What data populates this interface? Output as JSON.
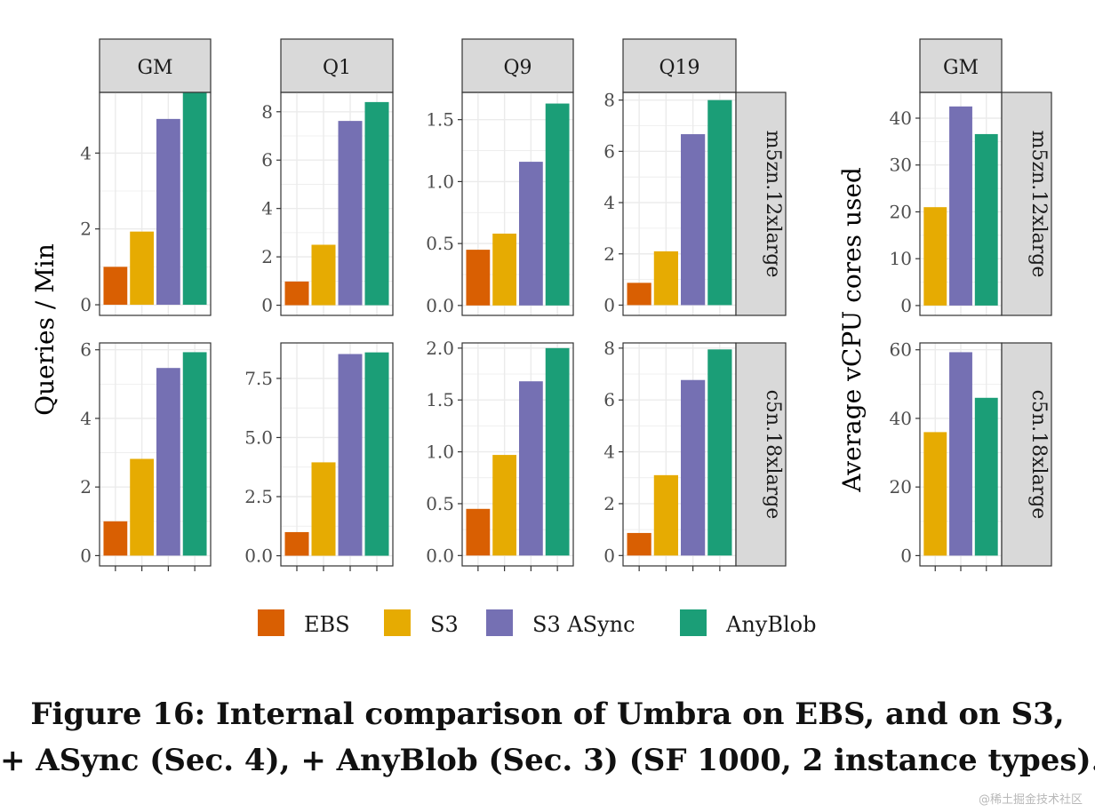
{
  "colors": {
    "EBS": "#d95f02",
    "S3": "#e6ab02",
    "S3 ASync": "#7570b3",
    "AnyBlob": "#1b9e77",
    "strip_fill": "#d9d9d9",
    "grid": "#ebebeb",
    "panel_border": "#333333"
  },
  "legend": {
    "items": [
      {
        "label": "EBS",
        "key": "EBS"
      },
      {
        "label": "S3",
        "key": "S3"
      },
      {
        "label": "S3 ASync",
        "key": "S3 ASync"
      },
      {
        "label": "AnyBlob",
        "key": "AnyBlob"
      }
    ]
  },
  "chart_data": [
    {
      "type": "bar",
      "ylabel": "Queries / Min",
      "categories": [
        "EBS",
        "S3",
        "S3 ASync",
        "AnyBlob"
      ],
      "columns": [
        "GM",
        "Q1",
        "Q9",
        "Q19"
      ],
      "rows": [
        "m5zn.12xlarge",
        "c5n.18xlarge"
      ],
      "panels": [
        {
          "column": "GM",
          "row": "m5zn.12xlarge",
          "values": [
            1.0,
            1.93,
            4.9,
            5.6
          ],
          "ylim": [
            -0.28,
            5.6
          ],
          "ticks": [
            0,
            2,
            4
          ],
          "tick_labels": [
            "0",
            "2",
            "4"
          ]
        },
        {
          "column": "Q1",
          "row": "m5zn.12xlarge",
          "values": [
            0.98,
            2.5,
            7.62,
            8.4
          ],
          "ylim": [
            -0.42,
            8.8
          ],
          "ticks": [
            0,
            2,
            4,
            6,
            8
          ],
          "tick_labels": [
            "0",
            "2",
            "4",
            "6",
            "8"
          ]
        },
        {
          "column": "Q9",
          "row": "m5zn.12xlarge",
          "values": [
            0.45,
            0.58,
            1.16,
            1.63
          ],
          "ylim": [
            -0.08,
            1.72
          ],
          "ticks": [
            0,
            0.5,
            1.0,
            1.5
          ],
          "tick_labels": [
            "0.0",
            "0.5",
            "1.0",
            "1.5"
          ]
        },
        {
          "column": "Q19",
          "row": "m5zn.12xlarge",
          "values": [
            0.87,
            2.1,
            6.67,
            8.0
          ],
          "ylim": [
            -0.4,
            8.3
          ],
          "ticks": [
            0,
            2,
            4,
            6,
            8
          ],
          "tick_labels": [
            "0",
            "2",
            "4",
            "6",
            "8"
          ]
        },
        {
          "column": "GM",
          "row": "c5n.18xlarge",
          "values": [
            1.0,
            2.82,
            5.47,
            5.93
          ],
          "ylim": [
            -0.3,
            6.2
          ],
          "ticks": [
            0,
            2,
            4,
            6
          ],
          "tick_labels": [
            "0",
            "2",
            "4",
            "6"
          ]
        },
        {
          "column": "Q1",
          "row": "c5n.18xlarge",
          "values": [
            1.0,
            3.95,
            8.53,
            8.6
          ],
          "ylim": [
            -0.43,
            9.0
          ],
          "ticks": [
            0,
            2.5,
            5.0,
            7.5
          ],
          "tick_labels": [
            "0.0",
            "2.5",
            "5.0",
            "7.5"
          ]
        },
        {
          "column": "Q9",
          "row": "c5n.18xlarge",
          "values": [
            0.45,
            0.97,
            1.68,
            2.0
          ],
          "ylim": [
            -0.1,
            2.05
          ],
          "ticks": [
            0,
            0.5,
            1.0,
            1.5,
            2.0
          ],
          "tick_labels": [
            "0.0",
            "0.5",
            "1.0",
            "1.5",
            "2.0"
          ]
        },
        {
          "column": "Q19",
          "row": "c5n.18xlarge",
          "values": [
            0.87,
            3.1,
            6.77,
            7.95
          ],
          "ylim": [
            -0.4,
            8.2
          ],
          "ticks": [
            0,
            2,
            4,
            6,
            8
          ],
          "tick_labels": [
            "0",
            "2",
            "4",
            "6",
            "8"
          ]
        }
      ]
    },
    {
      "type": "bar",
      "ylabel": "Average vCPU cores used",
      "categories": [
        "S3",
        "S3 ASync",
        "AnyBlob"
      ],
      "columns": [
        "GM"
      ],
      "rows": [
        "m5zn.12xlarge",
        "c5n.18xlarge"
      ],
      "panels": [
        {
          "column": "GM",
          "row": "m5zn.12xlarge",
          "values": [
            21,
            42.5,
            36.6
          ],
          "ylim": [
            -2.1,
            45.5
          ],
          "ticks": [
            0,
            10,
            20,
            30,
            40
          ],
          "tick_labels": [
            "0",
            "10",
            "20",
            "30",
            "40"
          ]
        },
        {
          "column": "GM",
          "row": "c5n.18xlarge",
          "values": [
            36,
            59.3,
            46
          ],
          "ylim": [
            -3.0,
            62.0
          ],
          "ticks": [
            0,
            20,
            40,
            60
          ],
          "tick_labels": [
            "0",
            "20",
            "40",
            "60"
          ]
        }
      ]
    }
  ],
  "caption": {
    "line1": "Figure 16: Internal comparison of Umbra on EBS, and on S3,",
    "line2": "+ ASync (Sec. 4), + AnyBlob (Sec. 3) (SF 1000, 2 instance types)."
  },
  "watermark": "@稀土掘金技术社区"
}
